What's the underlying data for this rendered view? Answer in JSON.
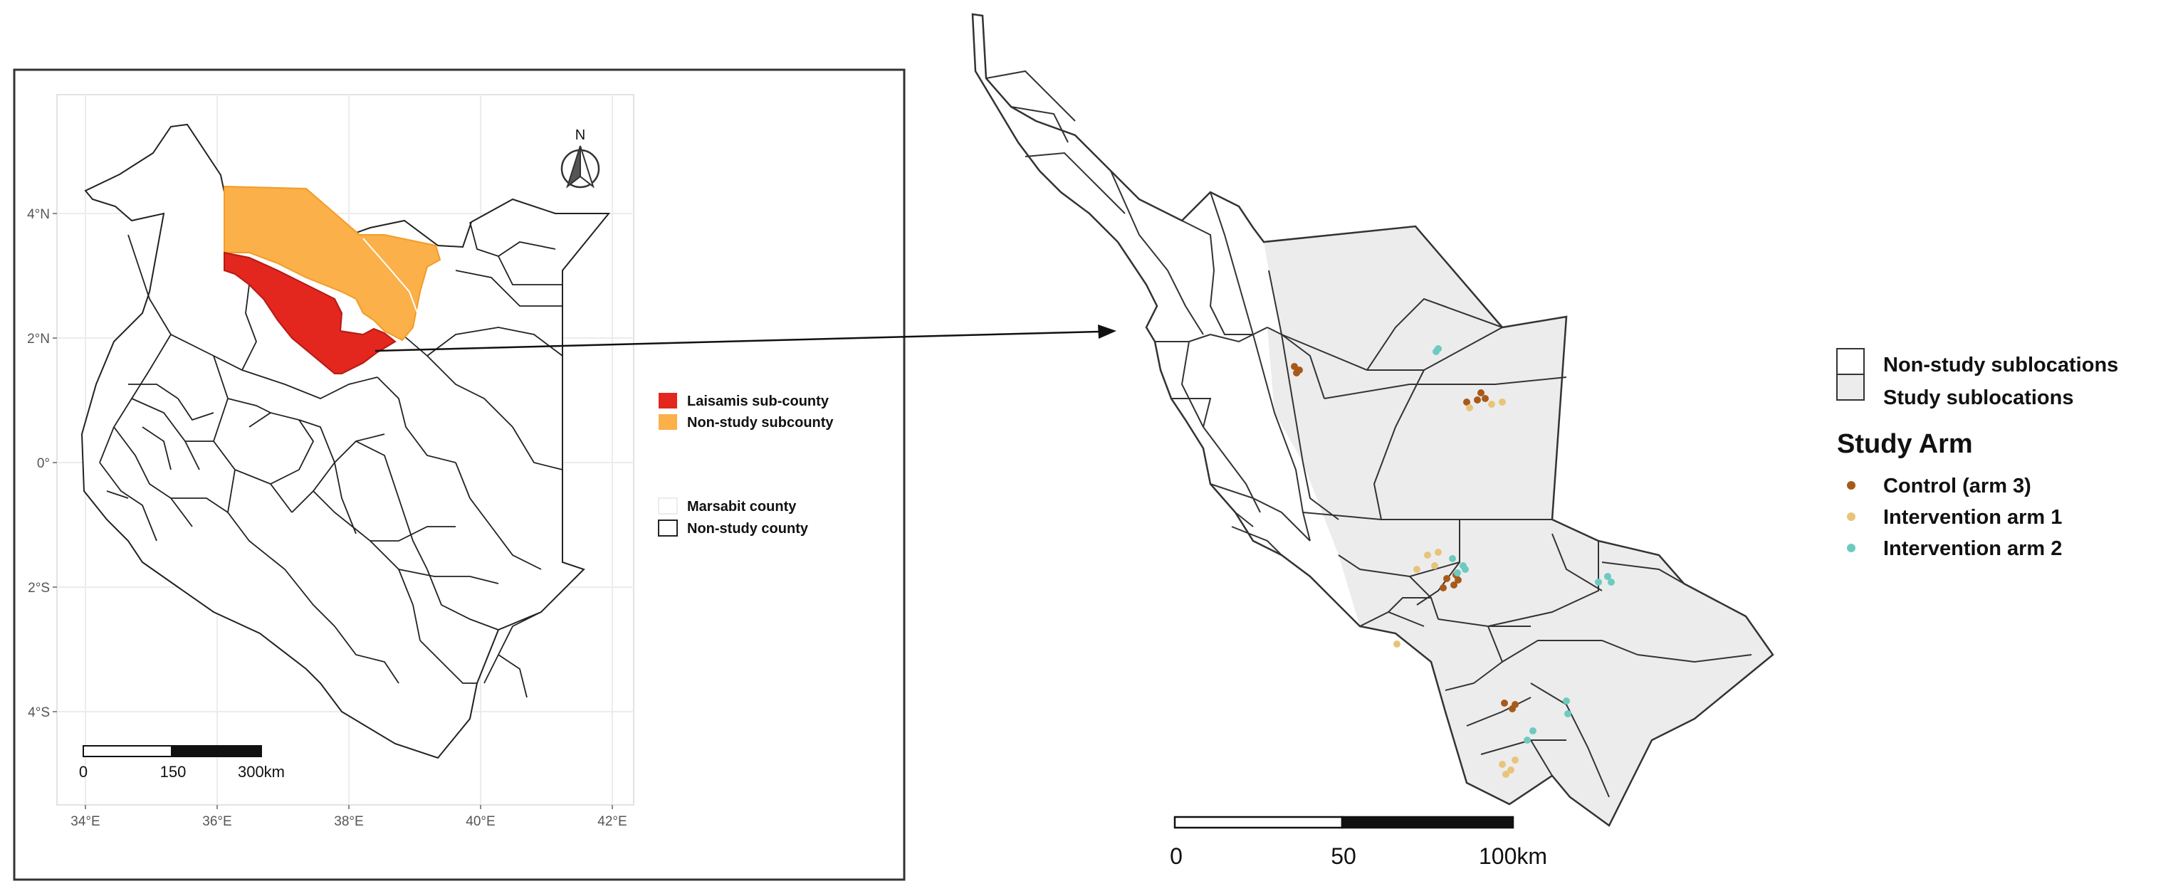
{
  "inset_map": {
    "lat_ticks": [
      "4°N",
      "2°N",
      "0°",
      "2°S",
      "4°S"
    ],
    "lon_ticks": [
      "34°E",
      "36°E",
      "38°E",
      "40°E",
      "42°E"
    ],
    "north_label": "N",
    "scale_labels": [
      "0",
      "150",
      "300km"
    ],
    "legend_subcounty": [
      {
        "label": "Laisamis sub-county",
        "color": "#e3261e"
      },
      {
        "label": "Non-study subcounty",
        "color": "#fbb04a"
      }
    ],
    "legend_county": [
      {
        "label": "Marsabit county",
        "swatch": "white"
      },
      {
        "label": "Non-study county",
        "swatch": "outline"
      }
    ]
  },
  "main_map": {
    "scale_labels": [
      "0",
      "50",
      "100km"
    ],
    "legend_sublocations": [
      {
        "label": "Non-study sublocations",
        "fill": "#ffffff"
      },
      {
        "label": "Study sublocations",
        "fill": "#ececec"
      }
    ],
    "legend_title": "Study Arm",
    "legend_arms": [
      {
        "label": "Control (arm 3)",
        "color": "#a85a1a"
      },
      {
        "label": "Intervention arm 1",
        "color": "#e8c47a"
      },
      {
        "label": "Intervention arm 2",
        "color": "#6ccbc0"
      }
    ]
  },
  "colors": {
    "study_area": "#ececec",
    "frame": "#222222",
    "arrow": "#111111"
  }
}
